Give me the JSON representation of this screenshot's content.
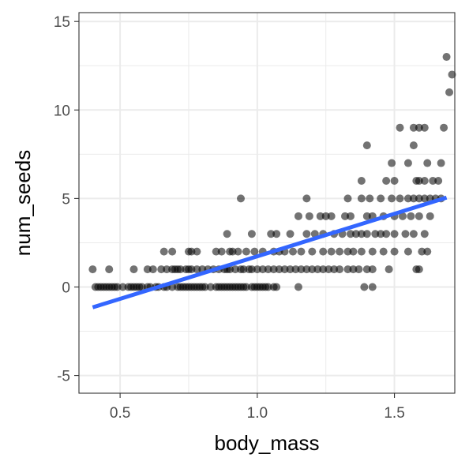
{
  "chart_data": {
    "type": "scatter",
    "xlabel": "body_mass",
    "ylabel": "num_seeds",
    "xlim": [
      0.35,
      1.72
    ],
    "ylim": [
      -6,
      15.5
    ],
    "x_ticks": [
      0.5,
      1.0,
      1.5
    ],
    "x_tick_labels": [
      "0.5",
      "1.0",
      "1.5"
    ],
    "y_ticks": [
      -5,
      0,
      5,
      10,
      15
    ],
    "y_tick_labels": [
      "-5",
      "0",
      "5",
      "10",
      "15"
    ],
    "grid": true,
    "legend": "none",
    "colors": {
      "points": "#000000",
      "fit_line": "#3366ff",
      "grid": "#ebebeb",
      "panel_border": "#333333"
    },
    "trendline": {
      "type": "linear",
      "x": [
        0.4,
        1.69
      ],
      "y": [
        -1.15,
        5.05
      ]
    },
    "series": [
      {
        "values": [
          [
            0.4,
            1
          ],
          [
            0.46,
            1
          ],
          [
            0.41,
            0
          ],
          [
            0.42,
            0
          ],
          [
            0.43,
            0
          ],
          [
            0.44,
            0
          ],
          [
            0.45,
            0
          ],
          [
            0.46,
            0
          ],
          [
            0.47,
            0
          ],
          [
            0.48,
            0
          ],
          [
            0.49,
            0
          ],
          [
            0.51,
            0
          ],
          [
            0.53,
            0
          ],
          [
            0.54,
            0
          ],
          [
            0.55,
            0
          ],
          [
            0.56,
            0
          ],
          [
            0.57,
            0
          ],
          [
            0.58,
            0
          ],
          [
            0.6,
            0
          ],
          [
            0.61,
            0
          ],
          [
            0.63,
            0
          ],
          [
            0.64,
            0
          ],
          [
            0.66,
            0
          ],
          [
            0.67,
            0
          ],
          [
            0.69,
            0
          ],
          [
            0.71,
            0
          ],
          [
            0.72,
            0
          ],
          [
            0.73,
            0
          ],
          [
            0.74,
            0
          ],
          [
            0.75,
            0
          ],
          [
            0.76,
            0
          ],
          [
            0.77,
            0
          ],
          [
            0.78,
            0
          ],
          [
            0.79,
            0
          ],
          [
            0.8,
            0
          ],
          [
            0.81,
            0
          ],
          [
            0.83,
            0
          ],
          [
            0.85,
            0
          ],
          [
            0.86,
            0
          ],
          [
            0.87,
            0
          ],
          [
            0.88,
            0
          ],
          [
            0.89,
            0
          ],
          [
            0.9,
            0
          ],
          [
            0.91,
            0
          ],
          [
            0.92,
            0
          ],
          [
            0.93,
            0
          ],
          [
            0.94,
            0
          ],
          [
            0.95,
            0
          ],
          [
            0.96,
            0
          ],
          [
            0.98,
            0
          ],
          [
            0.99,
            0
          ],
          [
            1.0,
            0
          ],
          [
            1.01,
            0
          ],
          [
            1.02,
            0
          ],
          [
            1.03,
            0
          ],
          [
            1.04,
            0
          ],
          [
            1.06,
            0
          ],
          [
            1.07,
            0
          ],
          [
            1.15,
            0
          ],
          [
            1.39,
            0
          ],
          [
            1.42,
            0
          ],
          [
            0.55,
            1
          ],
          [
            0.6,
            1
          ],
          [
            0.62,
            1
          ],
          [
            0.65,
            1
          ],
          [
            0.67,
            1
          ],
          [
            0.69,
            1
          ],
          [
            0.7,
            1
          ],
          [
            0.71,
            1
          ],
          [
            0.72,
            1
          ],
          [
            0.74,
            1
          ],
          [
            0.75,
            1
          ],
          [
            0.76,
            1
          ],
          [
            0.78,
            1
          ],
          [
            0.8,
            1
          ],
          [
            0.82,
            1
          ],
          [
            0.84,
            1
          ],
          [
            0.86,
            1
          ],
          [
            0.88,
            1
          ],
          [
            0.89,
            1
          ],
          [
            0.9,
            1
          ],
          [
            0.92,
            1
          ],
          [
            0.94,
            1
          ],
          [
            0.95,
            1
          ],
          [
            0.97,
            1
          ],
          [
            0.98,
            1
          ],
          [
            1.0,
            1
          ],
          [
            1.02,
            1
          ],
          [
            1.04,
            1
          ],
          [
            1.06,
            1
          ],
          [
            1.08,
            1
          ],
          [
            1.1,
            1
          ],
          [
            1.12,
            1
          ],
          [
            1.14,
            1
          ],
          [
            1.16,
            1
          ],
          [
            1.18,
            1
          ],
          [
            1.2,
            1
          ],
          [
            1.22,
            1
          ],
          [
            1.24,
            1
          ],
          [
            1.26,
            1
          ],
          [
            1.28,
            1
          ],
          [
            1.3,
            1
          ],
          [
            1.33,
            1
          ],
          [
            1.35,
            1
          ],
          [
            1.37,
            1
          ],
          [
            1.4,
            1
          ],
          [
            1.42,
            1
          ],
          [
            1.48,
            1
          ],
          [
            1.58,
            1
          ],
          [
            1.59,
            1
          ],
          [
            0.66,
            2
          ],
          [
            0.69,
            2
          ],
          [
            0.75,
            2
          ],
          [
            0.76,
            2
          ],
          [
            0.78,
            2
          ],
          [
            0.85,
            2
          ],
          [
            0.87,
            2
          ],
          [
            0.9,
            2
          ],
          [
            0.91,
            2
          ],
          [
            0.93,
            2
          ],
          [
            0.96,
            2
          ],
          [
            0.99,
            2
          ],
          [
            1.02,
            2
          ],
          [
            1.06,
            2
          ],
          [
            1.08,
            2
          ],
          [
            1.1,
            2
          ],
          [
            1.13,
            2
          ],
          [
            1.16,
            2
          ],
          [
            1.2,
            2
          ],
          [
            1.24,
            2
          ],
          [
            1.27,
            2
          ],
          [
            1.3,
            2
          ],
          [
            1.33,
            2
          ],
          [
            1.35,
            2
          ],
          [
            1.38,
            2
          ],
          [
            1.42,
            2
          ],
          [
            1.46,
            2
          ],
          [
            1.5,
            2
          ],
          [
            1.55,
            2
          ],
          [
            1.6,
            2
          ],
          [
            1.62,
            2
          ],
          [
            0.89,
            3
          ],
          [
            0.98,
            3
          ],
          [
            1.05,
            3
          ],
          [
            1.07,
            3
          ],
          [
            1.12,
            3
          ],
          [
            1.18,
            3
          ],
          [
            1.21,
            3
          ],
          [
            1.24,
            3
          ],
          [
            1.28,
            3
          ],
          [
            1.31,
            3
          ],
          [
            1.34,
            3
          ],
          [
            1.36,
            3
          ],
          [
            1.38,
            3
          ],
          [
            1.4,
            3
          ],
          [
            1.43,
            3
          ],
          [
            1.45,
            3
          ],
          [
            1.47,
            3
          ],
          [
            1.5,
            3
          ],
          [
            1.54,
            3
          ],
          [
            1.57,
            3
          ],
          [
            1.61,
            3
          ],
          [
            1.15,
            4
          ],
          [
            1.19,
            4
          ],
          [
            1.23,
            4
          ],
          [
            1.25,
            4
          ],
          [
            1.27,
            4
          ],
          [
            1.32,
            4
          ],
          [
            1.34,
            4
          ],
          [
            1.4,
            4
          ],
          [
            1.42,
            4
          ],
          [
            1.46,
            4
          ],
          [
            1.5,
            4
          ],
          [
            1.53,
            4
          ],
          [
            1.56,
            4
          ],
          [
            1.59,
            4
          ],
          [
            1.63,
            4
          ],
          [
            0.94,
            5
          ],
          [
            1.18,
            5
          ],
          [
            1.33,
            5
          ],
          [
            1.38,
            5
          ],
          [
            1.41,
            5
          ],
          [
            1.45,
            5
          ],
          [
            1.49,
            5
          ],
          [
            1.52,
            5
          ],
          [
            1.55,
            5
          ],
          [
            1.57,
            5
          ],
          [
            1.59,
            5
          ],
          [
            1.61,
            5
          ],
          [
            1.63,
            5
          ],
          [
            1.65,
            5
          ],
          [
            1.67,
            5
          ],
          [
            1.38,
            6
          ],
          [
            1.47,
            6
          ],
          [
            1.5,
            6
          ],
          [
            1.58,
            6
          ],
          [
            1.59,
            6
          ],
          [
            1.61,
            6
          ],
          [
            1.64,
            6
          ],
          [
            1.66,
            6
          ],
          [
            1.49,
            7
          ],
          [
            1.55,
            7
          ],
          [
            1.62,
            7
          ],
          [
            1.67,
            7
          ],
          [
            1.4,
            8
          ],
          [
            1.57,
            8
          ],
          [
            1.52,
            9
          ],
          [
            1.57,
            9
          ],
          [
            1.59,
            9
          ],
          [
            1.61,
            9
          ],
          [
            1.68,
            9
          ],
          [
            1.7,
            11
          ],
          [
            1.71,
            12
          ],
          [
            1.69,
            13
          ]
        ]
      }
    ]
  }
}
